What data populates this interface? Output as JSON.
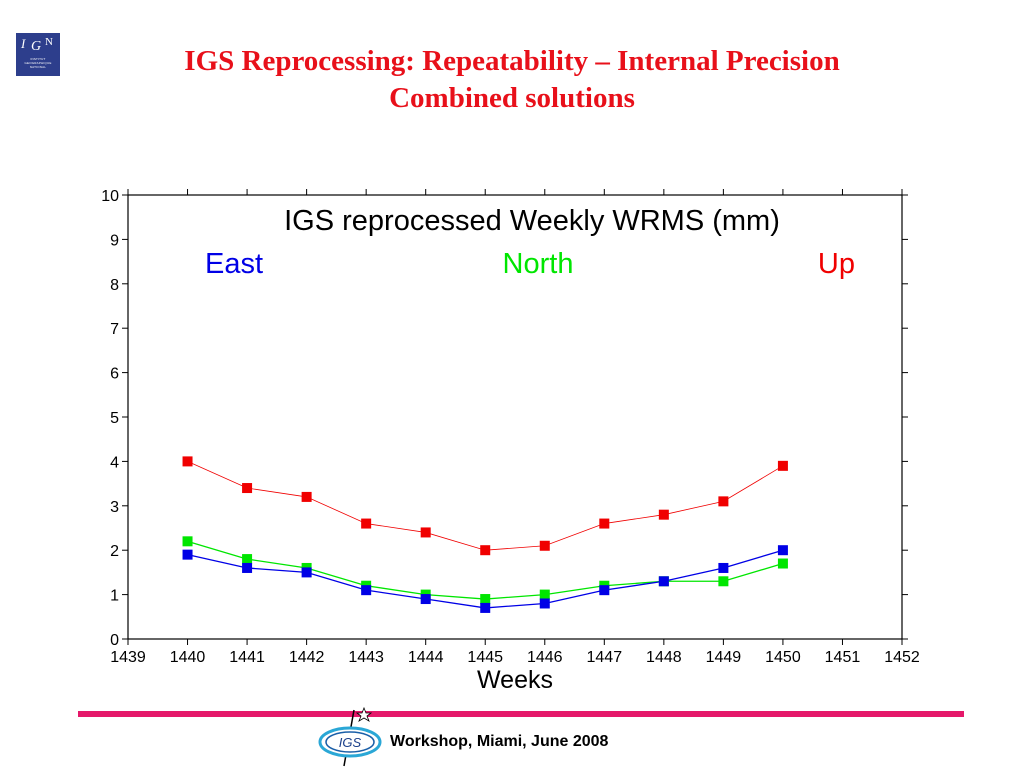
{
  "logo": {
    "letters": [
      "I",
      "G",
      "N"
    ],
    "subtext": "INSTITUT GEOGRAPHIQUE NATIONAL"
  },
  "slide": {
    "title_line1": "IGS Reprocessing: Repeatability – Internal Precision",
    "title_line2": "Combined solutions"
  },
  "footer": {
    "text": "Workshop, Miami, June 2008",
    "badge": "IGS"
  },
  "colors": {
    "title": "#e8101a",
    "footer_bar": "#e5186a",
    "east": "#0000e6",
    "north": "#00e600",
    "up": "#f00000"
  },
  "chart_data": {
    "type": "line",
    "title": "IGS reprocessed Weekly WRMS (mm)",
    "xlabel": "Weeks",
    "ylabel": "",
    "xlim": [
      1439,
      1452
    ],
    "ylim": [
      0,
      10
    ],
    "xticks": [
      1439,
      1440,
      1441,
      1442,
      1443,
      1444,
      1445,
      1446,
      1447,
      1448,
      1449,
      1450,
      1451,
      1452
    ],
    "yticks": [
      0,
      1,
      2,
      3,
      4,
      5,
      6,
      7,
      8,
      9,
      10
    ],
    "grid": false,
    "legend": "top",
    "x": [
      1440,
      1441,
      1442,
      1443,
      1444,
      1445,
      1446,
      1447,
      1448,
      1449,
      1450
    ],
    "series": [
      {
        "name": "East",
        "color": "#0000e6",
        "values": [
          1.9,
          1.6,
          1.5,
          1.1,
          0.9,
          0.7,
          0.8,
          1.1,
          1.3,
          1.6,
          2.0
        ]
      },
      {
        "name": "North",
        "color": "#00e600",
        "values": [
          2.2,
          1.8,
          1.6,
          1.2,
          1.0,
          0.9,
          1.0,
          1.2,
          1.3,
          1.3,
          1.7
        ]
      },
      {
        "name": "Up",
        "color": "#f00000",
        "values": [
          4.0,
          3.4,
          3.2,
          2.6,
          2.4,
          2.0,
          2.1,
          2.6,
          2.8,
          3.1,
          3.9
        ]
      }
    ]
  }
}
